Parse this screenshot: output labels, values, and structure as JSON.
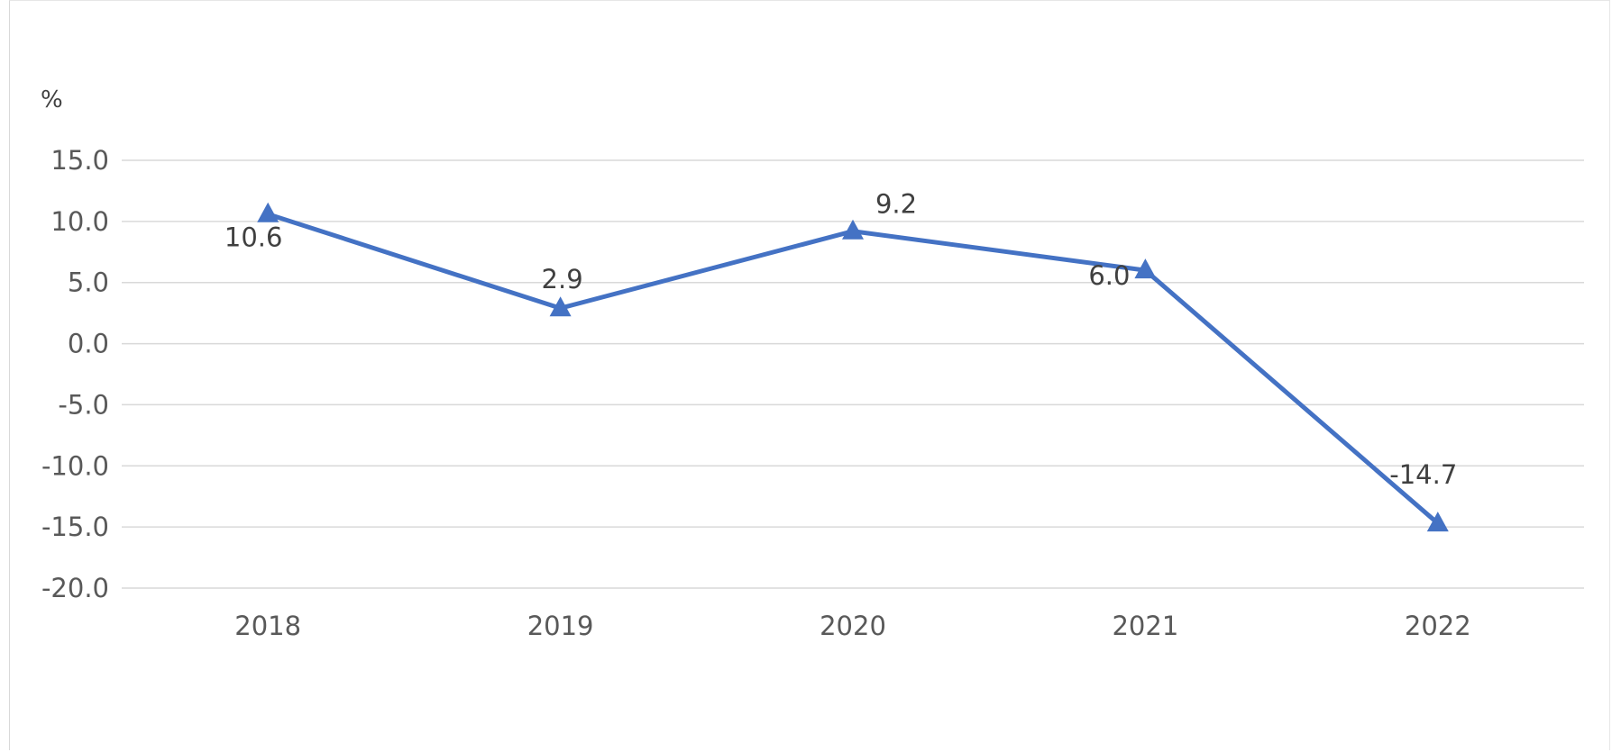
{
  "chart_data": {
    "type": "line",
    "y_unit": "%",
    "categories": [
      "2018",
      "2019",
      "2020",
      "2021",
      "2022"
    ],
    "series": [
      {
        "values": [
          10.6,
          2.9,
          9.2,
          6.0,
          -14.7
        ],
        "value_labels": [
          "10.6",
          "2.9",
          "9.2",
          "6.0",
          "-14.7"
        ],
        "color": "#4472c4",
        "marker": "triangle"
      }
    ],
    "ylim": [
      -20.0,
      15.0
    ],
    "yticks": [
      15.0,
      10.0,
      5.0,
      0.0,
      -5.0,
      -10.0,
      -15.0,
      -20.0
    ],
    "ytick_labels": [
      "15.0",
      "10.0",
      "5.0",
      "0.0",
      "-5.0",
      "-10.0",
      "-15.0",
      "-20.0"
    ],
    "grid": "horizontal",
    "grid_color": "#d9d9d9",
    "legend": "none"
  }
}
